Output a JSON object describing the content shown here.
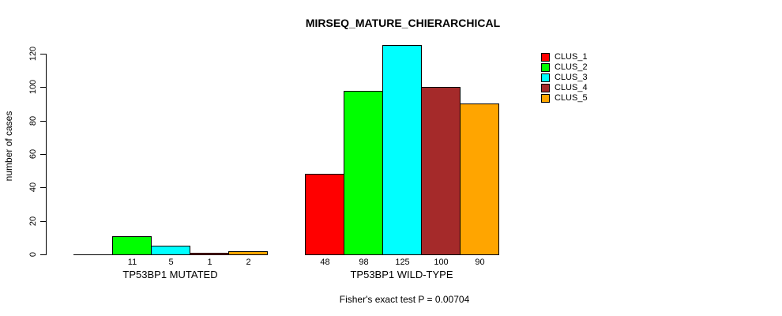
{
  "chart_data": {
    "type": "bar",
    "title": "MIRSEQ_MATURE_CHIERARCHICAL",
    "ylabel": "number of cases",
    "xlabel": "",
    "ylim": [
      0,
      120
    ],
    "yticks": [
      0,
      20,
      40,
      60,
      80,
      100,
      120
    ],
    "grid": false,
    "legend_position": "right",
    "bar_value_labels": true,
    "hide_zero_value_labels": true,
    "categories": [
      "TP53BP1 MUTATED",
      "TP53BP1 WILD-TYPE"
    ],
    "series": [
      {
        "name": "CLUS_1",
        "color": "#FF0000",
        "values": [
          0,
          48
        ]
      },
      {
        "name": "CLUS_2",
        "color": "#00FF00",
        "values": [
          11,
          98
        ]
      },
      {
        "name": "CLUS_3",
        "color": "#00FFFF",
        "values": [
          5,
          125
        ]
      },
      {
        "name": "CLUS_4",
        "color": "#A52A2A",
        "values": [
          1,
          100
        ]
      },
      {
        "name": "CLUS_5",
        "color": "#FFA500",
        "values": [
          2,
          90
        ]
      }
    ],
    "footnote": "Fisher's exact test P = 0.00704"
  },
  "canvas": {
    "background": "#FFFFFF",
    "axis_color": "#000000",
    "text_color": "#000000"
  }
}
